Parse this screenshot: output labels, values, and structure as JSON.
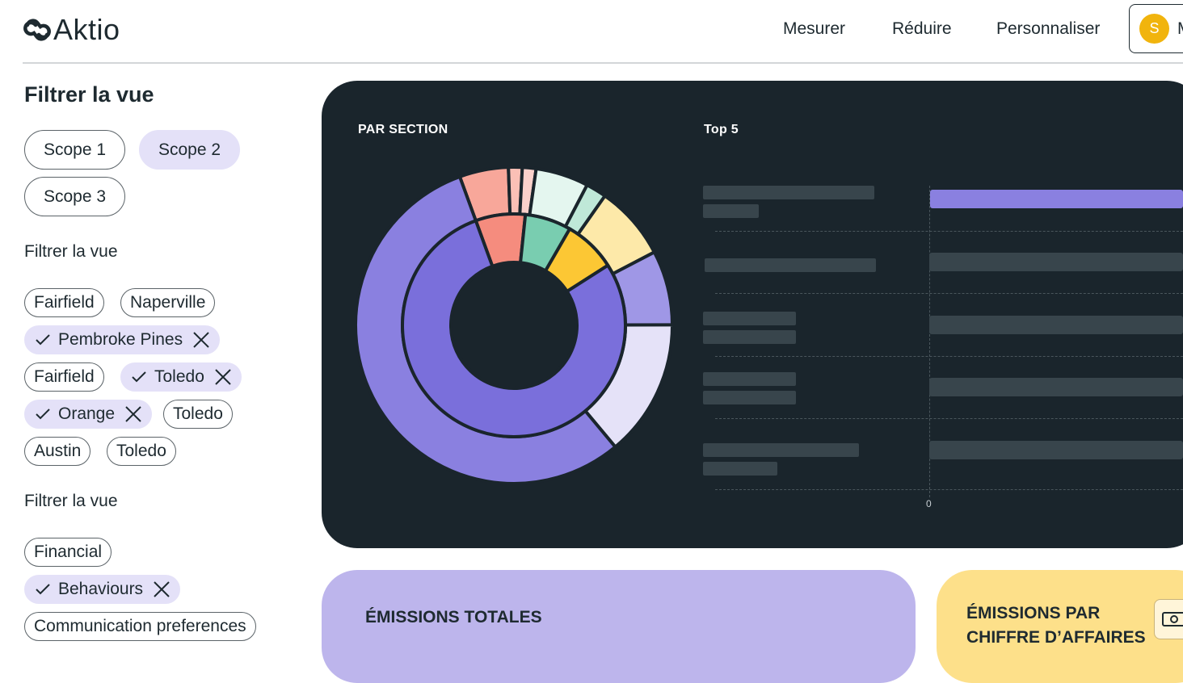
{
  "app": {
    "logo_text": "Aktio"
  },
  "nav": {
    "items": [
      "Mesurer",
      "Réduire",
      "Personnaliser"
    ],
    "user_avatar_initial": "S",
    "user_name_initial": "M"
  },
  "sidebar": {
    "title": "Filtrer la vue",
    "scopes": [
      "Scope 1",
      "Scope 2",
      "Scope 3"
    ],
    "scope_selected": "Scope 2",
    "location_filter_title": "Filtrer la vue",
    "locations": [
      {
        "label": "Fairfield",
        "selected": false
      },
      {
        "label": "Naperville",
        "selected": false
      },
      {
        "label": "Pembroke Pines",
        "selected": true
      },
      {
        "label": "Fairfield",
        "selected": false
      },
      {
        "label": "Toledo",
        "selected": true
      },
      {
        "label": "Orange",
        "selected": true
      },
      {
        "label": "Toledo",
        "selected": false
      },
      {
        "label": "Austin",
        "selected": false
      },
      {
        "label": "Toledo",
        "selected": false
      }
    ],
    "category_filter_title": "Filtrer la vue",
    "categories": [
      {
        "label": "Financial",
        "selected": false
      },
      {
        "label": "Behaviours",
        "selected": true
      },
      {
        "label": "Communication preferences",
        "selected": false
      }
    ]
  },
  "section_chart": {
    "title": "PAR SECTION"
  },
  "top5_chart": {
    "title": "Top 5",
    "x_tick_zero": "0"
  },
  "chart_data": [
    {
      "type": "pie",
      "variant": "sunburst",
      "title": "PAR SECTION",
      "inner_ring": [
        {
          "share": 0.072,
          "color": "#f58c7e"
        },
        {
          "share": 0.067,
          "color": "#79cdb0"
        },
        {
          "share": 0.076,
          "color": "#fcc734"
        },
        {
          "share": 0.785,
          "color": "#7a6fdb"
        }
      ],
      "outer_ring": [
        {
          "share": 0.05,
          "color": "#f8a79a"
        },
        {
          "share": 0.014,
          "color": "#fbc0b6"
        },
        {
          "share": 0.014,
          "color": "#fbd1cb"
        },
        {
          "share": 0.054,
          "color": "#e4f6ef"
        },
        {
          "share": 0.021,
          "color": "#bfe8d8"
        },
        {
          "share": 0.076,
          "color": "#fde9a9"
        },
        {
          "share": 0.076,
          "color": "#9f97e6"
        },
        {
          "share": 0.14,
          "color": "#e5e2f8"
        },
        {
          "share": 0.555,
          "color": "#8a80e0"
        }
      ]
    },
    {
      "type": "bar",
      "orientation": "horizontal",
      "title": "Top 5",
      "categories": [
        "",
        "",
        "",
        "",
        ""
      ],
      "x_ticks": [
        "0"
      ],
      "highlight_color": "#8a80e0",
      "muted_color": "#38454c"
    }
  ],
  "cards": {
    "total_emissions_label": "ÉMISSIONS TOTALES",
    "emissions_revenue_label_line1": "ÉMISSIONS PAR",
    "emissions_revenue_label_line2": "CHIFFRE D’AFFAIRES",
    "colors": {
      "total": "#bdb5ec",
      "revenue": "#fde08a"
    }
  },
  "colors": {
    "dark_panel": "#1a252c",
    "accent_purple": "#7a6fdb",
    "chip_selected": "#e4e1f8",
    "avatar": "#f1b40d"
  },
  "icons": {
    "logo": "link-icon",
    "check": "check-icon",
    "remove": "close-icon",
    "money": "banknote-icon"
  }
}
